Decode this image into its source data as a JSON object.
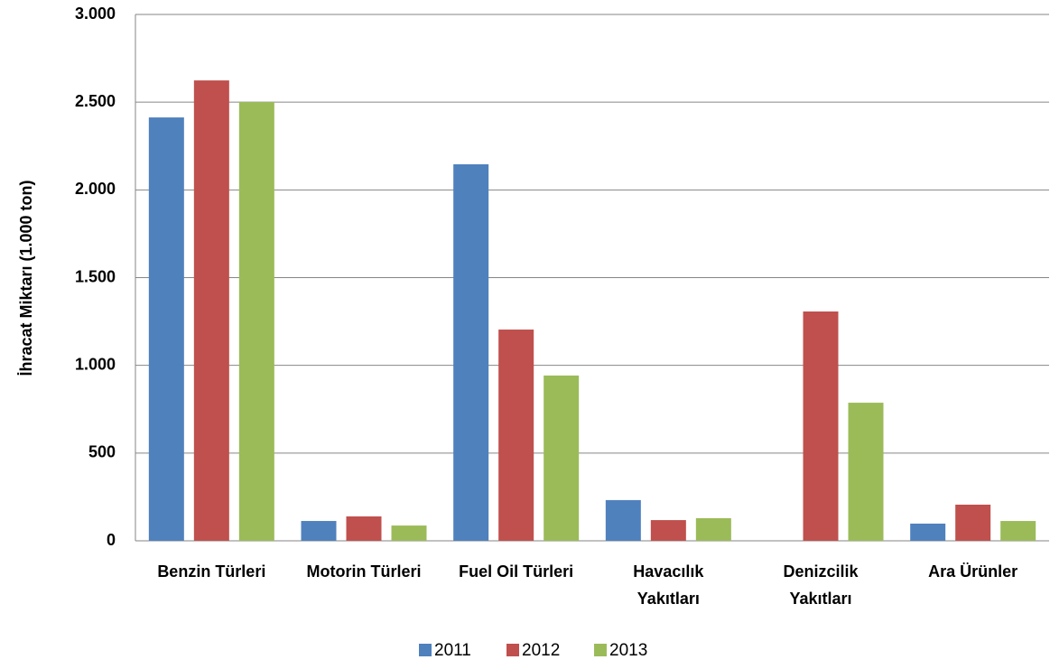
{
  "chart_data": {
    "type": "bar",
    "y_label": "İhracat Miktarı (1.000 ton)",
    "categories": [
      "Benzin Türleri",
      "Motorin Türleri",
      "Fuel Oil Türleri",
      "Havacılık Yakıtları",
      "Denizcilik Yakıtları",
      "Ara Ürünler"
    ],
    "series": [
      {
        "name": "2011",
        "color": "#4f81bd",
        "values": [
          2413,
          113,
          2146,
          232,
          0,
          98
        ]
      },
      {
        "name": "2012",
        "color": "#c0504d",
        "values": [
          2624,
          139,
          1204,
          118,
          1307,
          206
        ]
      },
      {
        "name": "2013",
        "color": "#9bbb59",
        "values": [
          2501,
          87,
          942,
          129,
          787,
          113
        ]
      }
    ],
    "ylim": [
      0,
      3000
    ],
    "yticks": [
      0,
      500,
      {
        "value": 1000,
        "label": "1.000"
      },
      {
        "value": 1500,
        "label": "1.500"
      },
      {
        "value": 2000,
        "label": "2.000"
      },
      {
        "value": 2500,
        "label": "2.500"
      },
      {
        "value": 3000,
        "label": "3.000"
      }
    ],
    "grid": true
  }
}
